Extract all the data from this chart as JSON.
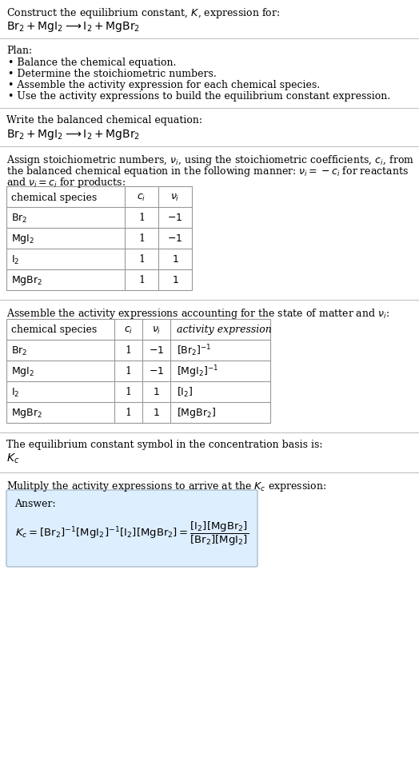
{
  "title_line1": "Construct the equilibrium constant, $K$, expression for:",
  "title_line2": "$\\mathrm{Br_2 + MgI_2 \\longrightarrow I_2 + MgBr_2}$",
  "plan_header": "Plan:",
  "plan_items": [
    "Balance the chemical equation.",
    "Determine the stoichiometric numbers.",
    "Assemble the activity expression for each chemical species.",
    "Use the activity expressions to build the equilibrium constant expression."
  ],
  "balanced_eq_header": "Write the balanced chemical equation:",
  "balanced_eq": "$\\mathrm{Br_2 + MgI_2 \\longrightarrow I_2 + MgBr_2}$",
  "stoich_intro_1": "Assign stoichiometric numbers, $\\nu_i$, using the stoichiometric coefficients, $c_i$, from",
  "stoich_intro_2": "the balanced chemical equation in the following manner: $\\nu_i = -c_i$ for reactants",
  "stoich_intro_3": "and $\\nu_i = c_i$ for products:",
  "table1_headers": [
    "chemical species",
    "$c_i$",
    "$\\nu_i$"
  ],
  "table1_data": [
    [
      "$\\mathrm{Br_2}$",
      "1",
      "$-1$"
    ],
    [
      "$\\mathrm{MgI_2}$",
      "1",
      "$-1$"
    ],
    [
      "$\\mathrm{I_2}$",
      "1",
      "$1$"
    ],
    [
      "$\\mathrm{MgBr_2}$",
      "1",
      "$1$"
    ]
  ],
  "activity_intro": "Assemble the activity expressions accounting for the state of matter and $\\nu_i$:",
  "table2_headers": [
    "chemical species",
    "$c_i$",
    "$\\nu_i$",
    "activity expression"
  ],
  "table2_data": [
    [
      "$\\mathrm{Br_2}$",
      "1",
      "$-1$",
      "$[\\mathrm{Br_2}]^{-1}$"
    ],
    [
      "$\\mathrm{MgI_2}$",
      "1",
      "$-1$",
      "$[\\mathrm{MgI_2}]^{-1}$"
    ],
    [
      "$\\mathrm{I_2}$",
      "1",
      "$1$",
      "$[\\mathrm{I_2}]$"
    ],
    [
      "$\\mathrm{MgBr_2}$",
      "1",
      "$1$",
      "$[\\mathrm{MgBr_2}]$"
    ]
  ],
  "kc_symbol_text": "The equilibrium constant symbol in the concentration basis is:",
  "kc_symbol": "$K_c$",
  "multiply_text": "Mulitply the activity expressions to arrive at the $K_c$ expression:",
  "answer_label": "Answer:",
  "answer_expr": "$K_c = [\\mathrm{Br_2}]^{-1}[\\mathrm{MgI_2}]^{-1}[\\mathrm{I_2}][\\mathrm{MgBr_2}] = \\dfrac{[\\mathrm{I_2}][\\mathrm{MgBr_2}]}{[\\mathrm{Br_2}][\\mathrm{MgI_2}]}$",
  "answer_box_color": "#ddeeff",
  "answer_box_border": "#aabbcc",
  "bg_color": "#ffffff",
  "text_color": "#000000",
  "sep_color": "#bbbbbb",
  "table_border_color": "#999999",
  "font_size": 9.0
}
